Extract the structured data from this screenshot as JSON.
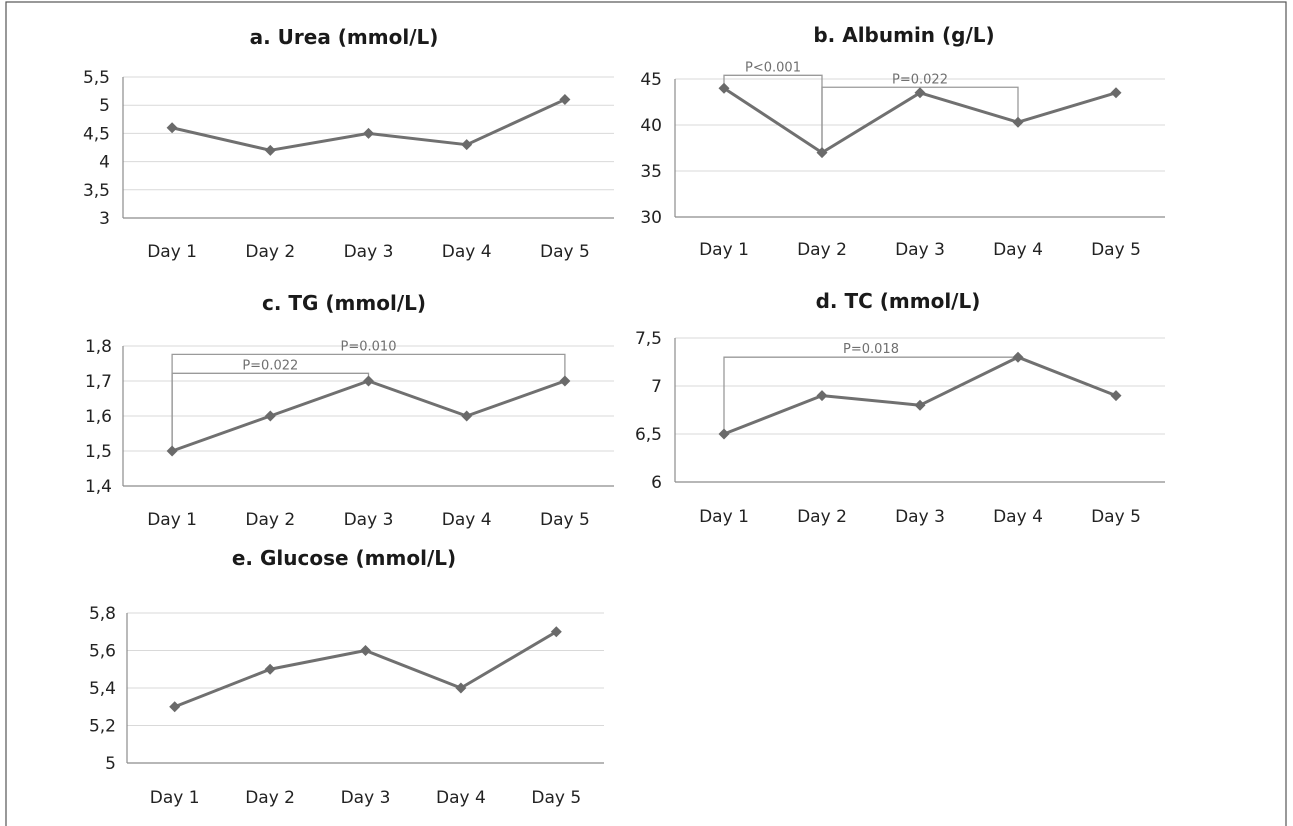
{
  "chart_data": [
    {
      "id": "a",
      "type": "line",
      "title": "a. Urea (mmol/L)",
      "categories": [
        "Day 1",
        "Day 2",
        "Day 3",
        "Day 4",
        "Day 5"
      ],
      "series": [
        {
          "values": [
            4.6,
            4.2,
            4.5,
            4.3,
            5.1
          ]
        }
      ],
      "ylim": [
        3,
        5.5
      ],
      "yticks": [
        3,
        3.5,
        4,
        4.5,
        5,
        5.5
      ],
      "ytick_labels": [
        "3",
        "3,5",
        "4",
        "4,5",
        "5",
        "5,5"
      ],
      "grid": true,
      "annotations": []
    },
    {
      "id": "b",
      "type": "line",
      "title": "b. Albumin (g/L)",
      "categories": [
        "Day 1",
        "Day 2",
        "Day 3",
        "Day 4",
        "Day 5"
      ],
      "series": [
        {
          "values": [
            44,
            37,
            43.5,
            40.3,
            43.5
          ]
        }
      ],
      "ylim": [
        30,
        45
      ],
      "yticks": [
        30,
        35,
        40,
        45
      ],
      "ytick_labels": [
        "30",
        "35",
        "40",
        "45"
      ],
      "grid": true,
      "annotations": [
        {
          "text": "P<0.001",
          "from": "Day 1",
          "to": "Day 2",
          "level": 45.4
        },
        {
          "text": "P=0.022",
          "from": "Day 2",
          "to": "Day 4",
          "level": 44.1
        }
      ]
    },
    {
      "id": "c",
      "type": "line",
      "title": "c. TG (mmol/L)",
      "categories": [
        "Day 1",
        "Day 2",
        "Day 3",
        "Day 4",
        "Day 5"
      ],
      "series": [
        {
          "values": [
            1.5,
            1.6,
            1.7,
            1.6,
            1.7
          ]
        }
      ],
      "ylim": [
        1.4,
        1.8
      ],
      "yticks": [
        1.4,
        1.5,
        1.6,
        1.7,
        1.8
      ],
      "ytick_labels": [
        "1,4",
        "1,5",
        "1,6",
        "1,7",
        "1,8"
      ],
      "grid": true,
      "annotations": [
        {
          "text": "P=0.010",
          "from": "Day 1",
          "to": "Day 5",
          "level": 1.776
        },
        {
          "text": "P=0.022",
          "from": "Day 1",
          "to": "Day 3",
          "level": 1.722
        }
      ]
    },
    {
      "id": "d",
      "type": "line",
      "title": "d. TC (mmol/L)",
      "categories": [
        "Day 1",
        "Day 2",
        "Day 3",
        "Day 4",
        "Day 5"
      ],
      "series": [
        {
          "values": [
            6.5,
            6.9,
            6.8,
            7.3,
            6.9
          ]
        }
      ],
      "ylim": [
        6,
        7.5
      ],
      "yticks": [
        6,
        6.5,
        7,
        7.5
      ],
      "ytick_labels": [
        "6",
        "6,5",
        "7",
        "7,5"
      ],
      "grid": true,
      "annotations": [
        {
          "text": "P=0.018",
          "from": "Day 1",
          "to": "Day 4",
          "level": 7.3
        }
      ]
    },
    {
      "id": "e",
      "type": "line",
      "title": "e. Glucose (mmol/L)",
      "categories": [
        "Day 1",
        "Day 2",
        "Day 3",
        "Day 4",
        "Day 5"
      ],
      "series": [
        {
          "values": [
            5.3,
            5.5,
            5.6,
            5.4,
            5.7
          ]
        }
      ],
      "ylim": [
        5,
        5.8
      ],
      "yticks": [
        5,
        5.2,
        5.4,
        5.6,
        5.8
      ],
      "ytick_labels": [
        "5",
        "5,2",
        "5,4",
        "5,6",
        "5,8"
      ],
      "grid": true,
      "annotations": []
    }
  ],
  "colors": {
    "line": "#707070",
    "marker": "#6a6a6a",
    "grid": "#d9d9d9",
    "bracket": "#9a9a9a"
  }
}
